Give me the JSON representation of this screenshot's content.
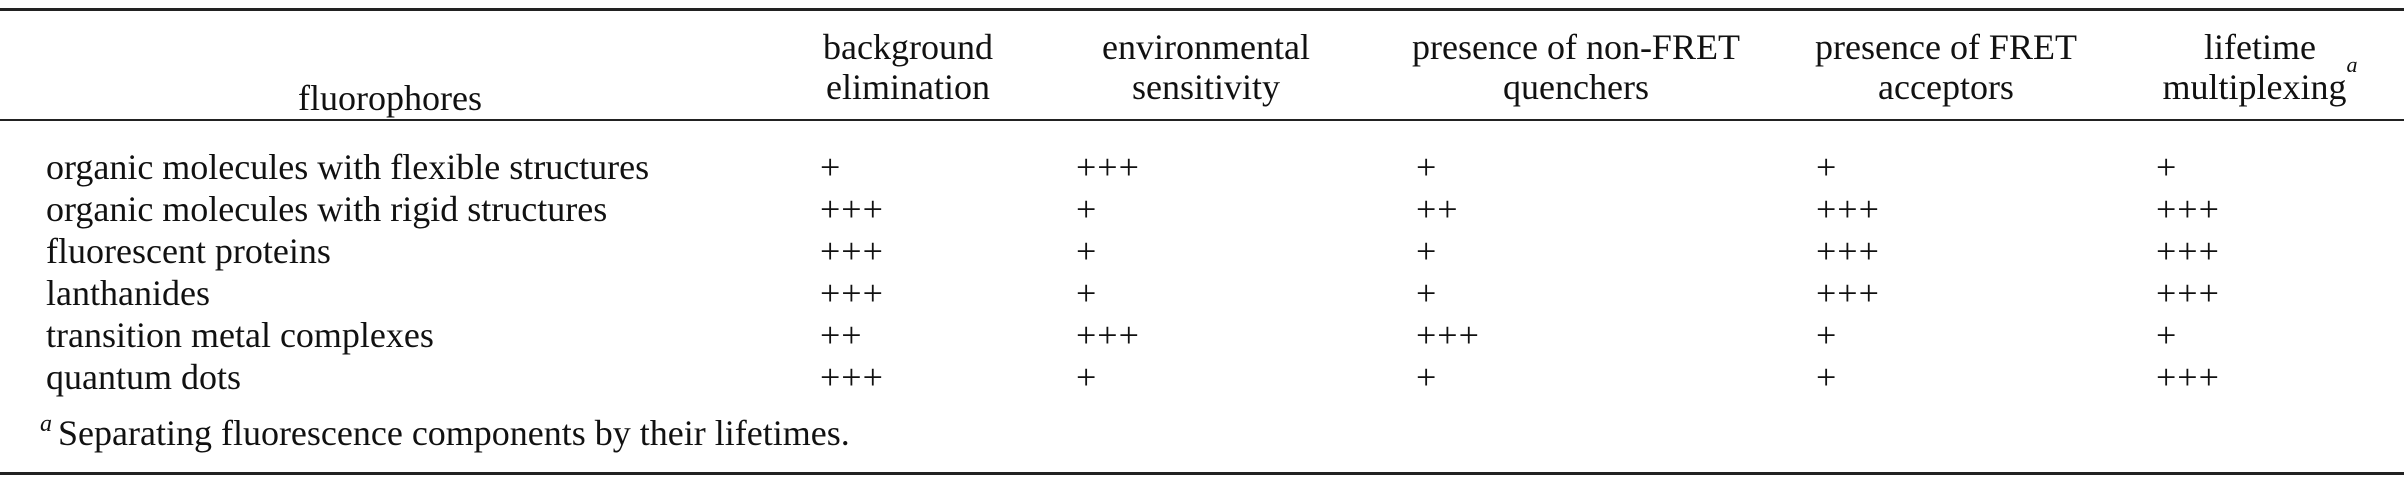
{
  "table": {
    "headers": [
      {
        "key": "fluorophores",
        "lines": [
          "fluorophores"
        ]
      },
      {
        "key": "background_elimination",
        "lines": [
          "background",
          "elimination"
        ]
      },
      {
        "key": "environmental_sensitivity",
        "lines": [
          "environmental",
          "sensitivity"
        ]
      },
      {
        "key": "non_fret_quenchers",
        "lines": [
          "presence of non-FRET",
          "quenchers"
        ]
      },
      {
        "key": "fret_acceptors",
        "lines": [
          "presence of FRET",
          "acceptors"
        ]
      },
      {
        "key": "lifetime_multiplexing",
        "lines": [
          "lifetime",
          "multiplexing"
        ],
        "footnote_mark": "a"
      }
    ],
    "rows": [
      {
        "name": "organic molecules with flexible structures",
        "values": [
          "+",
          "+++",
          "+",
          "+",
          "+"
        ]
      },
      {
        "name": "organic molecules with rigid structures",
        "values": [
          "+++",
          "+",
          "++",
          "+++",
          "+++"
        ]
      },
      {
        "name": "fluorescent proteins",
        "values": [
          "+++",
          "+",
          "+",
          "+++",
          "+++"
        ]
      },
      {
        "name": "lanthanides",
        "values": [
          "+++",
          "+",
          "+",
          "+++",
          "+++"
        ]
      },
      {
        "name": "transition metal complexes",
        "values": [
          "++",
          "+++",
          "+++",
          "+",
          "+"
        ]
      },
      {
        "name": "quantum dots",
        "values": [
          "+++",
          "+",
          "+",
          "+",
          "+++"
        ]
      }
    ]
  },
  "footnote": {
    "mark": "a",
    "text": "Separating fluorescence components by their lifetimes."
  }
}
